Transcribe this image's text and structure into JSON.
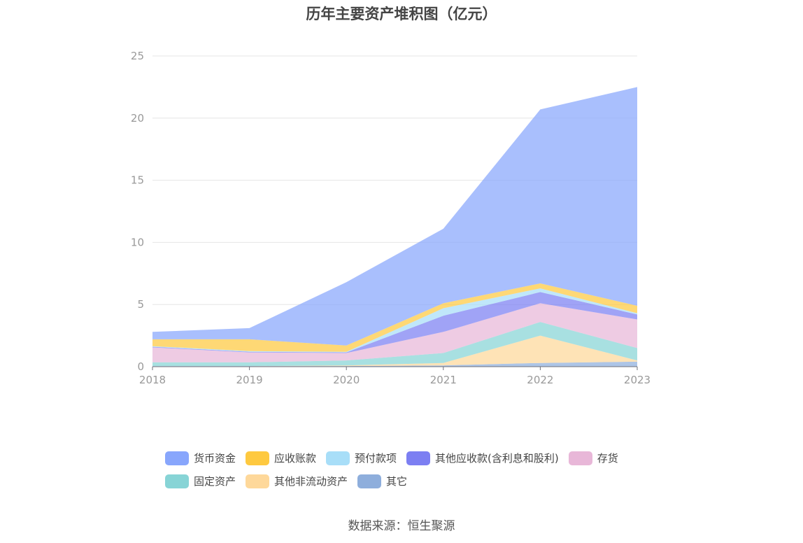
{
  "chart_data": {
    "type": "area",
    "title": "历年主要资产堆积图（亿元）",
    "x": [
      "2018",
      "2019",
      "2020",
      "2021",
      "2022",
      "2023"
    ],
    "yticks": [
      "0",
      "5",
      "10",
      "15",
      "20",
      "25"
    ],
    "ylim": [
      0,
      25
    ],
    "stacked": true,
    "grid": true,
    "legend_position": "bottom",
    "series": [
      {
        "name": "其它",
        "color": "#8eaedc",
        "values": [
          0.05,
          0.05,
          0.05,
          0.1,
          0.3,
          0.4
        ]
      },
      {
        "name": "其他非流动资产",
        "color": "#fed89a",
        "values": [
          0.0,
          0.0,
          0.05,
          0.2,
          2.2,
          0.1
        ]
      },
      {
        "name": "固定资产",
        "color": "#87d4d6",
        "values": [
          0.3,
          0.3,
          0.4,
          0.8,
          1.1,
          1.0
        ]
      },
      {
        "name": "存货",
        "color": "#e8b7d8",
        "values": [
          1.2,
          0.8,
          0.6,
          1.7,
          1.5,
          2.3
        ]
      },
      {
        "name": "其他应收款(含利息和股利)",
        "color": "#7c7ff2",
        "values": [
          0.05,
          0.05,
          0.05,
          1.3,
          0.9,
          0.4
        ]
      },
      {
        "name": "预付款项",
        "color": "#a8def8",
        "values": [
          0.05,
          0.05,
          0.05,
          0.6,
          0.3,
          0.1
        ]
      },
      {
        "name": "应收账款",
        "color": "#fec940",
        "values": [
          0.55,
          0.95,
          0.5,
          0.4,
          0.4,
          0.6
        ]
      },
      {
        "name": "货币资金",
        "color": "#88a6fc",
        "values": [
          0.6,
          0.9,
          5.1,
          6.0,
          14.0,
          17.6
        ]
      }
    ]
  },
  "legend": {
    "row1": [
      {
        "label": "货币资金",
        "color": "#88a6fc"
      },
      {
        "label": "应收账款",
        "color": "#fec940"
      },
      {
        "label": "预付款项",
        "color": "#a8def8"
      },
      {
        "label": "其他应收款(含利息和股利)",
        "color": "#7c7ff2"
      },
      {
        "label": "存货",
        "color": "#e8b7d8"
      }
    ],
    "row2": [
      {
        "label": "固定资产",
        "color": "#87d4d6"
      },
      {
        "label": "其他非流动资产",
        "color": "#fed89a"
      },
      {
        "label": "其它",
        "color": "#8eaedc"
      }
    ]
  },
  "source": "数据来源：恒生聚源"
}
